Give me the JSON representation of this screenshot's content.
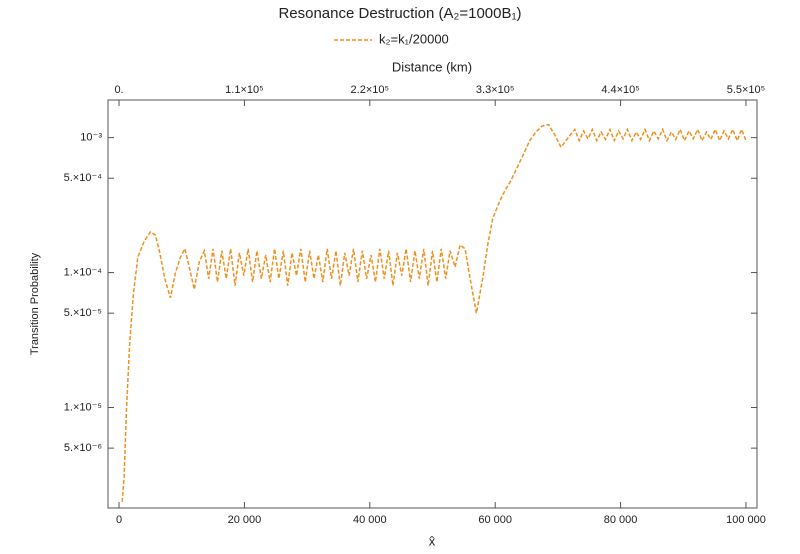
{
  "chart_data": {
    "type": "line",
    "title": "Resonance Destruction (A₂=1000B₁)",
    "xlabel": "x̂",
    "x2label": "Distance (km)",
    "ylabel": "Transition Probability",
    "yscale": "log",
    "legend_position": "top",
    "xlim": [
      -1760,
      101760
    ],
    "xticks": [
      0,
      {
        "value": 20000,
        "label": "20 000"
      },
      {
        "value": 40000,
        "label": "40 000"
      },
      {
        "value": 60000,
        "label": "60 000"
      },
      {
        "value": 80000,
        "label": "80 000"
      },
      {
        "value": 100000,
        "label": "100 000"
      }
    ],
    "x2lim": [
      -9680,
      559680
    ],
    "x2ticks": [
      {
        "value": 0,
        "label": "0."
      },
      {
        "value": 110000,
        "label": "1.1×10⁵"
      },
      {
        "value": 220000,
        "label": "2.2×10⁵"
      },
      {
        "value": 330000,
        "label": "3.3×10⁵"
      },
      {
        "value": 440000,
        "label": "4.4×10⁵"
      },
      {
        "value": 550000,
        "label": "5.5×10⁵"
      }
    ],
    "ylim": [
      1.8e-06,
      0.0019
    ],
    "yticks": [
      {
        "value": 0.001,
        "label": "10⁻³"
      },
      {
        "value": 0.0005,
        "label": "5.×10⁻⁴"
      },
      {
        "value": 0.0001,
        "label": "1.×10⁻⁴"
      },
      {
        "value": 5e-05,
        "label": "5.×10⁻⁵"
      },
      {
        "value": 1e-05,
        "label": "1.×10⁻⁵"
      },
      {
        "value": 5e-06,
        "label": "5.×10⁻⁶"
      }
    ],
    "series": [
      {
        "name": "k₂=k₁/20000",
        "color": "#f0901e",
        "dashed": true,
        "x": [
          500,
          800,
          1200,
          1700,
          2300,
          3000,
          4000,
          5000,
          5800,
          6500,
          7300,
          8200,
          9000,
          9800,
          10500,
          11200,
          12000,
          12800,
          13600,
          14300,
          15000,
          15700,
          16400,
          17100,
          17800,
          18500,
          19200,
          19900,
          20600,
          21300,
          22000,
          22700,
          23400,
          24100,
          24800,
          25500,
          26200,
          26900,
          27600,
          28300,
          29000,
          29700,
          30400,
          31100,
          31800,
          32500,
          33200,
          33900,
          34600,
          35300,
          36000,
          36700,
          37400,
          38100,
          38800,
          39500,
          40200,
          40900,
          41600,
          42300,
          43000,
          43700,
          44400,
          45100,
          45800,
          46500,
          47200,
          47900,
          48600,
          49300,
          50000,
          50700,
          51400,
          52100,
          52800,
          53600,
          54400,
          55200,
          56000,
          57000,
          58000,
          58800,
          59600,
          60500,
          61500,
          62500,
          63500,
          64500,
          65500,
          66500,
          67500,
          68500,
          69500,
          70500,
          71300,
          72000,
          72700,
          73400,
          74100,
          74800,
          75500,
          76200,
          76900,
          77600,
          78300,
          79000,
          79700,
          80400,
          81100,
          81800,
          82500,
          83200,
          83900,
          84600,
          85300,
          86000,
          86700,
          87400,
          88100,
          88800,
          89500,
          90200,
          90900,
          91600,
          92300,
          93000,
          93700,
          94400,
          95100,
          95800,
          96500,
          97200,
          97900,
          98600,
          99300,
          100000
        ],
        "values": [
          2e-06,
          3e-06,
          1e-05,
          3e-05,
          7e-05,
          0.00013,
          0.00017,
          0.0002,
          0.00019,
          0.00014,
          9e-05,
          6.5e-05,
          0.0001,
          0.00013,
          0.00015,
          0.00011,
          7.5e-05,
          0.00012,
          0.000145,
          9e-05,
          0.00015,
          8.5e-05,
          0.000145,
          9e-05,
          0.00015,
          8e-05,
          0.00014,
          9.5e-05,
          0.00015,
          8.5e-05,
          0.000145,
          9e-05,
          0.000135,
          8.5e-05,
          0.00015,
          9e-05,
          0.000145,
          8e-05,
          0.00014,
          9.5e-05,
          0.00015,
          8.5e-05,
          0.000145,
          9e-05,
          0.000135,
          8.5e-05,
          0.00015,
          9e-05,
          0.000145,
          8e-05,
          0.00014,
          9.5e-05,
          0.00015,
          8.5e-05,
          0.000145,
          9e-05,
          0.000135,
          8.5e-05,
          0.00015,
          9e-05,
          0.000145,
          8e-05,
          0.00014,
          9.5e-05,
          0.00015,
          8.5e-05,
          0.000145,
          9e-05,
          0.00015,
          8e-05,
          0.000145,
          8.5e-05,
          0.00015,
          9e-05,
          0.000145,
          0.00011,
          0.00016,
          0.00015,
          9e-05,
          5e-05,
          9e-05,
          0.00016,
          0.00025,
          0.00032,
          0.0004,
          0.00048,
          0.0006,
          0.00075,
          0.00095,
          0.0011,
          0.00122,
          0.00125,
          0.00105,
          0.00085,
          0.00095,
          0.00105,
          0.00115,
          0.00095,
          0.00112,
          0.00098,
          0.00115,
          0.00095,
          0.0011,
          0.00097,
          0.00115,
          0.00095,
          0.00112,
          0.00098,
          0.00115,
          0.00095,
          0.0011,
          0.00097,
          0.00115,
          0.00095,
          0.00112,
          0.00098,
          0.00115,
          0.00095,
          0.0011,
          0.00097,
          0.00115,
          0.00095,
          0.00112,
          0.00098,
          0.00115,
          0.00095,
          0.0011,
          0.00097,
          0.00115,
          0.00095,
          0.00112,
          0.00098,
          0.00115,
          0.00095,
          0.00115,
          0.00095
        ]
      }
    ]
  }
}
